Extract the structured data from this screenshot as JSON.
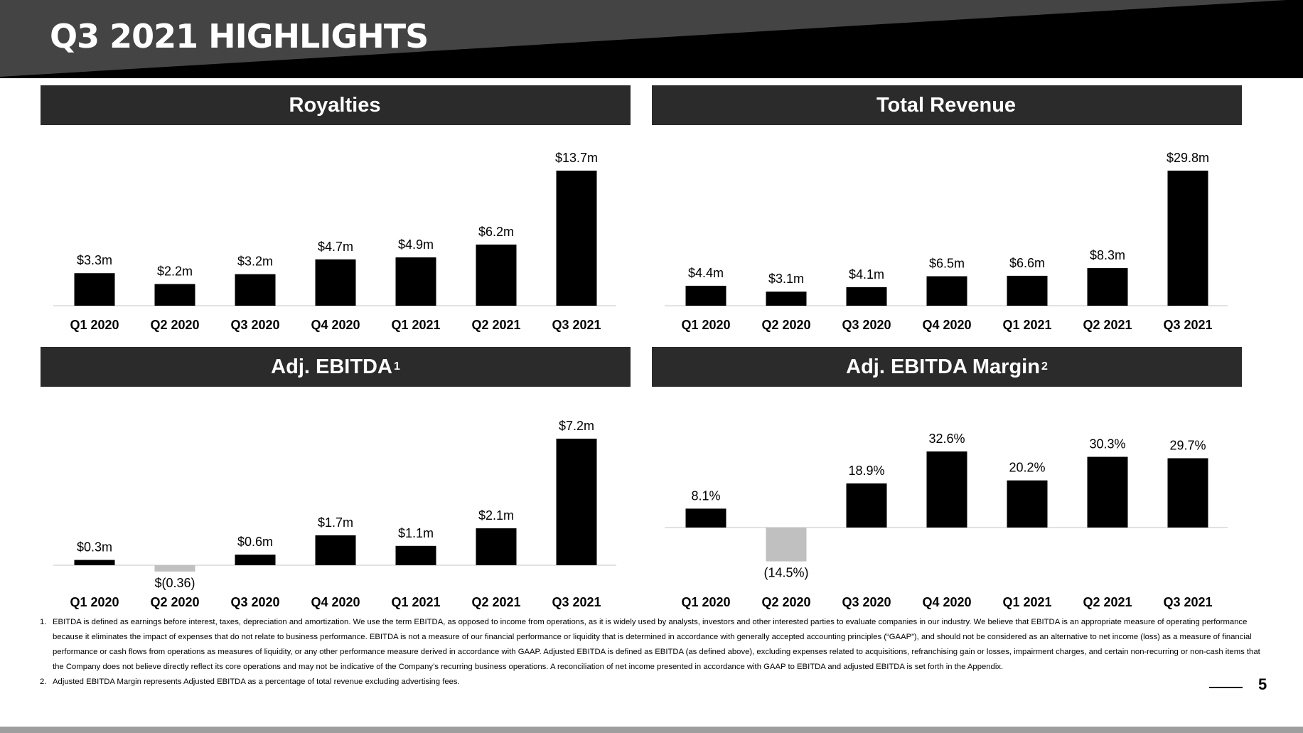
{
  "title": "Q3 2021 HIGHLIGHTS",
  "colors": {
    "header_dark": "#000000",
    "header_gray": "#444444",
    "panel_bar": "#2b2b2b",
    "bar": "#000000",
    "negative_bar": "#c0c0c0",
    "bottom_bar": "#9e9e9e"
  },
  "panels": [
    {
      "title": "Royalties",
      "sup": ""
    },
    {
      "title": "Total Revenue",
      "sup": ""
    },
    {
      "title": "Adj. EBITDA",
      "sup": "1"
    },
    {
      "title": "Adj. EBITDA Margin",
      "sup": "2"
    }
  ],
  "chart_data": [
    {
      "type": "bar",
      "title": "Royalties",
      "categories": [
        "Q1 2020",
        "Q2 2020",
        "Q3 2020",
        "Q4 2020",
        "Q1 2021",
        "Q2 2021",
        "Q3 2021"
      ],
      "values": [
        3.3,
        2.2,
        3.2,
        4.7,
        4.9,
        6.2,
        13.7
      ],
      "labels": [
        "$3.3m",
        "$2.2m",
        "$3.2m",
        "$4.7m",
        "$4.9m",
        "$6.2m",
        "$13.7m"
      ],
      "ylim": [
        0,
        13.7
      ],
      "grid": false
    },
    {
      "type": "bar",
      "title": "Total Revenue",
      "categories": [
        "Q1 2020",
        "Q2 2020",
        "Q3 2020",
        "Q4 2020",
        "Q1 2021",
        "Q2 2021",
        "Q3 2021"
      ],
      "values": [
        4.4,
        3.1,
        4.1,
        6.5,
        6.6,
        8.3,
        29.8
      ],
      "labels": [
        "$4.4m",
        "$3.1m",
        "$4.1m",
        "$6.5m",
        "$6.6m",
        "$8.3m",
        "$29.8m"
      ],
      "ylim": [
        0,
        29.8
      ],
      "grid": false
    },
    {
      "type": "bar",
      "title": "Adj. EBITDA",
      "categories": [
        "Q1 2020",
        "Q2 2020",
        "Q3 2020",
        "Q4 2020",
        "Q1 2021",
        "Q2 2021",
        "Q3 2021"
      ],
      "values": [
        0.3,
        -0.36,
        0.6,
        1.7,
        1.1,
        2.1,
        7.2
      ],
      "labels": [
        "$0.3m",
        "$(0.36)",
        "$0.6m",
        "$1.7m",
        "$1.1m",
        "$2.1m",
        "$7.2m"
      ],
      "ylim": [
        -0.36,
        7.2
      ],
      "grid": false
    },
    {
      "type": "bar",
      "title": "Adj. EBITDA Margin",
      "categories": [
        "Q1 2020",
        "Q2 2020",
        "Q3 2020",
        "Q4 2020",
        "Q1 2021",
        "Q2 2021",
        "Q3 2021"
      ],
      "values": [
        8.1,
        -14.5,
        18.9,
        32.6,
        20.2,
        30.3,
        29.7
      ],
      "labels": [
        "8.1%",
        "(14.5%)",
        "18.9%",
        "32.6%",
        "20.2%",
        "30.3%",
        "29.7%"
      ],
      "ylim": [
        -14.5,
        32.6
      ],
      "grid": false
    }
  ],
  "footnotes": [
    {
      "num": "1.",
      "text": "EBITDA is defined as earnings before interest, taxes, depreciation and amortization. We use the term EBITDA, as opposed to income from operations, as it is widely used by analysts, investors and other interested parties to evaluate companies in our industry. We believe that EBITDA is an appropriate measure of operating performance because it eliminates the impact of expenses that do not relate to business performance. EBITDA is not a measure of our financial performance or liquidity that is determined in accordance with generally accepted accounting principles (“GAAP”), and should not be considered as an alternative to net income (loss) as a measure of financial performance or cash flows from operations as measures of liquidity, or any other performance measure derived in accordance with GAAP. Adjusted EBITDA is defined as EBITDA (as defined above), excluding expenses related to acquisitions, refranchising gain or losses, impairment charges, and certain non-recurring or non-cash items that the Company does not believe directly reflect its core operations and may not be indicative of the Company’s recurring business operations. A reconciliation of net income presented in accordance with GAAP to EBITDA and adjusted EBITDA is set forth in the Appendix."
    },
    {
      "num": "2.",
      "text": "Adjusted EBITDA Margin represents Adjusted EBITDA as a percentage of total revenue excluding advertising fees."
    }
  ],
  "page_number": "5"
}
